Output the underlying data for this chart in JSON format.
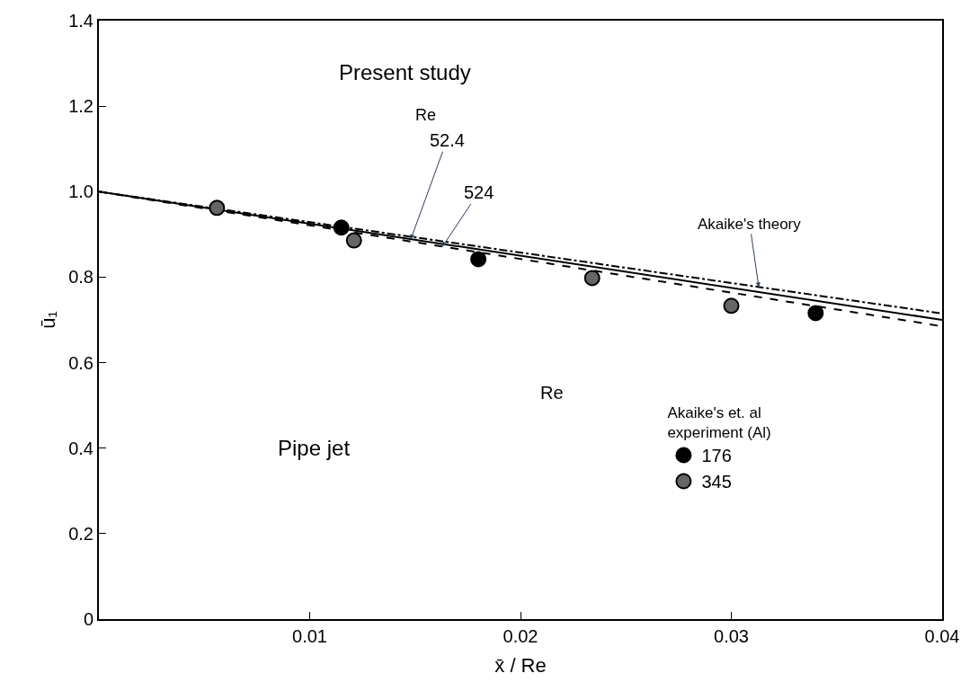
{
  "chart_data": {
    "type": "line",
    "xlabel": "x̄ / Re",
    "ylabel": "ū₁",
    "xlim": [
      0,
      0.04
    ],
    "xticks": [
      0.01,
      0.02,
      0.03,
      0.04
    ],
    "ylim": [
      0,
      1.4
    ],
    "yticks": [
      0,
      0.2,
      0.4,
      0.6,
      0.8,
      {
        "value": 1.0,
        "label": "1.0"
      },
      1.2,
      1.4
    ],
    "legend": "bottom right",
    "legend_title": "Akaike's et. al experiment (Al)",
    "annotations": [
      "Present study",
      "Re",
      "Re",
      "Pipe jet"
    ],
    "series": [
      {
        "name": "52.4",
        "line_style": "solid",
        "color": "#000000",
        "x": [
          0,
          0.04
        ],
        "values": [
          1.0,
          0.7
        ]
      },
      {
        "name": "524",
        "line_style": "dashed",
        "color": "#000000",
        "x": [
          0,
          0.04
        ],
        "values": [
          1.0,
          0.685
        ]
      },
      {
        "name": "Akaike's theory",
        "line_style": "dashdot",
        "color": "#000000",
        "x": [
          0,
          0.04
        ],
        "values": [
          1.0,
          0.715
        ]
      },
      {
        "name": "176",
        "type": "scatter",
        "marker": "circle",
        "color": "#000000",
        "x": [
          0.0115,
          0.018,
          0.034
        ],
        "values": [
          0.916,
          0.842,
          0.716
        ]
      },
      {
        "name": "345",
        "type": "scatter",
        "marker": "circle",
        "color": "#666666",
        "x": [
          0.0056,
          0.0121,
          0.0234,
          0.03
        ],
        "values": [
          0.962,
          0.886,
          0.798,
          0.733
        ]
      }
    ]
  }
}
